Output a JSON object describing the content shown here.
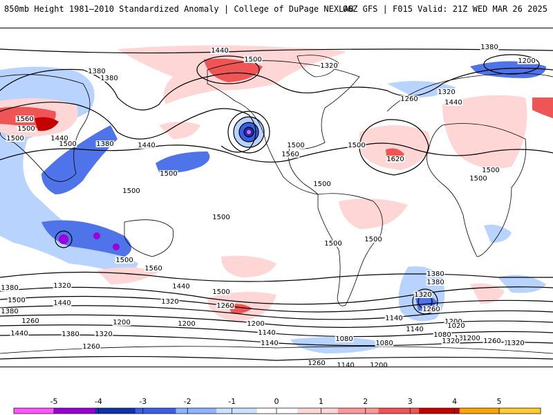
{
  "header": {
    "title": "850mb Height 1981–2010 Standardized Anomaly | College of DuPage NEXLAB",
    "run_info": "06Z GFS | F015 Valid: 21Z WED MAR 26 2025"
  },
  "contour_labels": [
    "1440",
    "1500",
    "1380",
    "1380",
    "1320",
    "1200",
    "1260",
    "1320",
    "1440",
    "1380",
    "1560",
    "1500",
    "1440",
    "1500",
    "1500",
    "1380",
    "1440",
    "1500",
    "1560",
    "1620",
    "1500",
    "1500",
    "1500",
    "1500",
    "1500",
    "1500",
    "1500",
    "1560",
    "1500",
    "1500",
    "1500",
    "1440",
    "1500",
    "1380",
    "1320",
    "1500",
    "1440",
    "1380",
    "1320",
    "1260",
    "1200",
    "1440",
    "1380",
    "1320",
    "1200",
    "1260",
    "1140",
    "1260",
    "1200",
    "1140",
    "1080",
    "1200",
    "1260",
    "1320",
    "1140",
    "1080",
    "1200",
    "1140",
    "1260",
    "1380",
    "1320",
    "1140",
    "1020",
    "1080",
    "1200",
    "1260",
    "1320",
    "1380",
    "1380",
    "1320",
    "1200"
  ],
  "colorbar": {
    "ticks": [
      "-5",
      "-4",
      "-3",
      "-2",
      "-1",
      "0",
      "1",
      "2",
      "3",
      "4",
      "5"
    ],
    "colors": [
      "#ff55ff",
      "#9b00d6",
      "#1133aa",
      "#3a5fe6",
      "#8fb3ff",
      "#cce0ff",
      "#ffffff",
      "#ffd6d6",
      "#ff9999",
      "#f05555",
      "#c40000",
      "#ffa500",
      "#ffcc33"
    ]
  }
}
